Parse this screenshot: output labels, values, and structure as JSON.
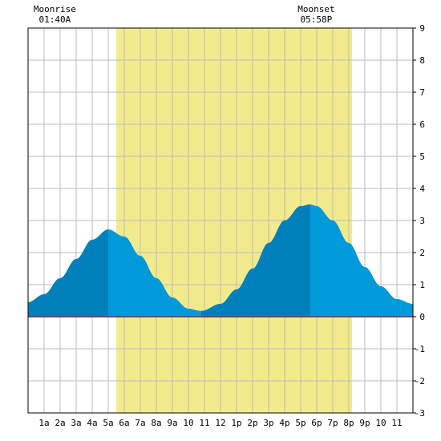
{
  "chart_data": {
    "type": "area",
    "title": "",
    "xlabel": "",
    "ylabel": "",
    "x_tick_labels": [
      "1a",
      "2a",
      "3a",
      "4a",
      "5a",
      "6a",
      "7a",
      "8a",
      "9a",
      "10",
      "11",
      "12",
      "1p",
      "2p",
      "3p",
      "4p",
      "5p",
      "6p",
      "7p",
      "8p",
      "9p",
      "10",
      "11"
    ],
    "xlim": [
      0,
      24
    ],
    "ylim": [
      -3,
      9
    ],
    "y_ticks": [
      -3,
      -2,
      -1,
      0,
      1,
      2,
      3,
      4,
      5,
      6,
      7,
      8,
      9
    ],
    "grid": true,
    "annotations": [
      {
        "label": "Moonrise",
        "time": "01:40A",
        "hour": 1.67
      },
      {
        "label": "Moonset",
        "time": "05:58P",
        "hour": 17.97
      }
    ],
    "daylight": {
      "start_hour": 5.5,
      "end_hour": 20.2
    },
    "rising_segments": [
      {
        "from_hour": 0,
        "to_hour": 5.0
      },
      {
        "from_hour": 10.8,
        "to_hour": 17.6
      }
    ],
    "series": [
      {
        "values": [
          {
            "x": 0,
            "y": 0.45
          },
          {
            "x": 1,
            "y": 0.7
          },
          {
            "x": 2,
            "y": 1.2
          },
          {
            "x": 3,
            "y": 1.8
          },
          {
            "x": 4,
            "y": 2.4
          },
          {
            "x": 5,
            "y": 2.72
          },
          {
            "x": 6,
            "y": 2.5
          },
          {
            "x": 7,
            "y": 1.9
          },
          {
            "x": 8,
            "y": 1.2
          },
          {
            "x": 9,
            "y": 0.6
          },
          {
            "x": 10,
            "y": 0.25
          },
          {
            "x": 10.8,
            "y": 0.18
          },
          {
            "x": 12,
            "y": 0.4
          },
          {
            "x": 13,
            "y": 0.85
          },
          {
            "x": 14,
            "y": 1.5
          },
          {
            "x": 15,
            "y": 2.3
          },
          {
            "x": 16,
            "y": 3.0
          },
          {
            "x": 17,
            "y": 3.45
          },
          {
            "x": 17.6,
            "y": 3.5
          },
          {
            "x": 18,
            "y": 3.45
          },
          {
            "x": 19,
            "y": 3.0
          },
          {
            "x": 20,
            "y": 2.3
          },
          {
            "x": 21,
            "y": 1.55
          },
          {
            "x": 22,
            "y": 0.95
          },
          {
            "x": 23,
            "y": 0.55
          },
          {
            "x": 24,
            "y": 0.4
          }
        ]
      }
    ],
    "colors": {
      "daylight": "#f2eb8e",
      "rising": "#0080bb",
      "falling": "#0099da",
      "grid": "#bbbbbb",
      "zero_line": "#444444",
      "frame": "#000000"
    }
  }
}
